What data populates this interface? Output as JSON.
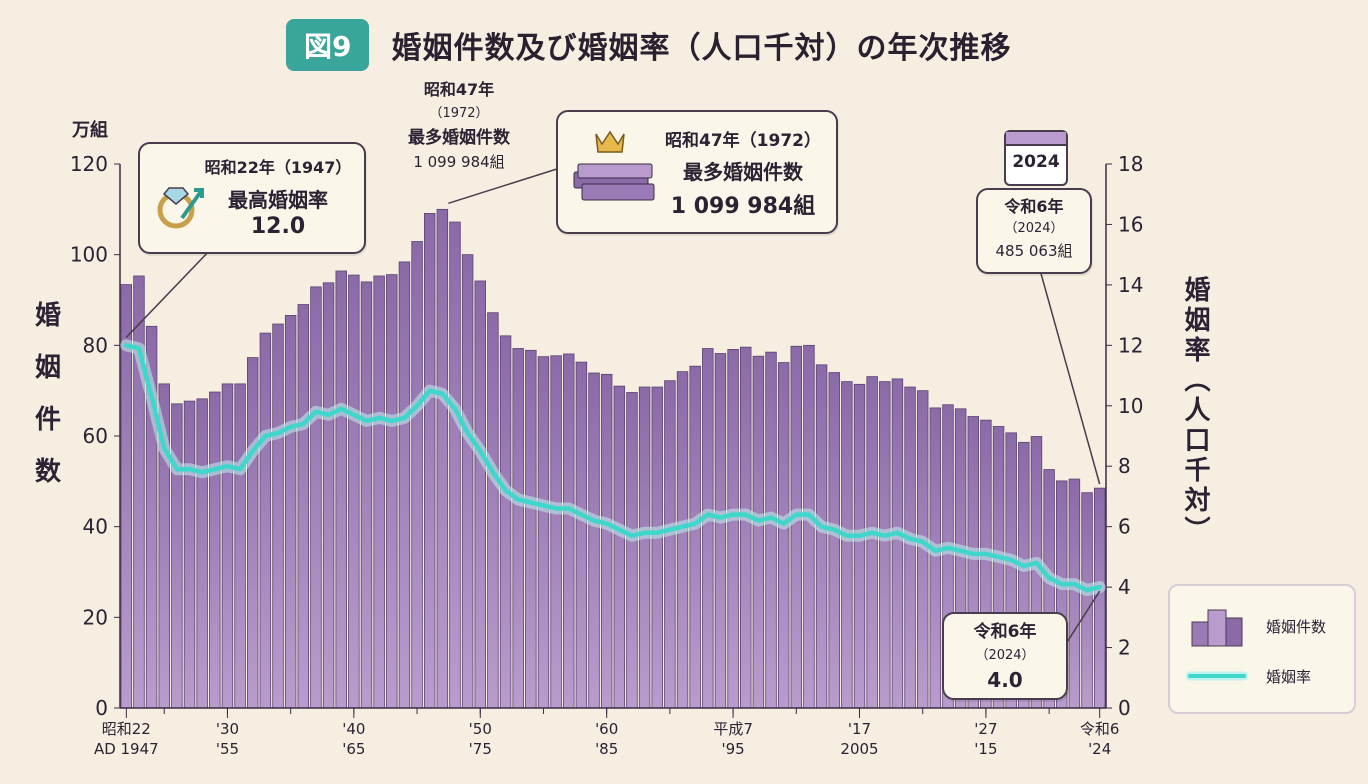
{
  "header": {
    "badge": "図9",
    "title": "婚姻件数及び婚姻率（人口千対）の年次推移"
  },
  "axes": {
    "left_unit": "万組",
    "left_title": [
      "婚",
      "姻",
      "件",
      "数"
    ],
    "right_title": "婚姻率（人口千対）",
    "left_ticks": [
      "0",
      "20",
      "40",
      "60",
      "80",
      "100",
      "120"
    ],
    "right_ticks": [
      "0",
      "2",
      "4",
      "6",
      "8",
      "10",
      "12",
      "14",
      "16",
      "18"
    ],
    "x_ticks": [
      {
        "year": 1947,
        "l1": "昭和22",
        "l2": "AD 1947"
      },
      {
        "year": 1955,
        "l1": "'30",
        "l2": "'55"
      },
      {
        "year": 1965,
        "l1": "'40",
        "l2": "'65"
      },
      {
        "year": 1975,
        "l1": "'50",
        "l2": "'75"
      },
      {
        "year": 1985,
        "l1": "'60",
        "l2": "'85"
      },
      {
        "year": 1995,
        "l1": "平成7",
        "l2": "'95"
      },
      {
        "year": 2005,
        "l1": "'17",
        "l2": "2005"
      },
      {
        "year": 2015,
        "l1": "'27",
        "l2": "'15"
      },
      {
        "year": 2024,
        "l1": "令和6",
        "l2": "'24"
      }
    ]
  },
  "annotations": {
    "peak_rate": {
      "line1": "昭和22年（1947）",
      "line2": "最高婚姻率",
      "value": "12.0"
    },
    "peak_count_label": {
      "line1": "昭和47年",
      "line2": "（1972）",
      "line3": "最多婚姻件数",
      "value": "1 099 984組"
    },
    "peak_count_box": {
      "line1": "昭和47年（1972）",
      "line2": "最多婚姻件数",
      "value": "1 099 984組"
    },
    "latest_count": {
      "calendar": "2024",
      "line1": "令和6年",
      "line2": "（2024）",
      "value": "485 063組"
    },
    "latest_rate": {
      "line1": "令和6年",
      "line2": "（2024）",
      "value": "4.0"
    }
  },
  "legend": {
    "bars": "婚姻件数",
    "line": "婚姻率"
  },
  "colors": {
    "bar": "#8b6aa8",
    "bar_light": "#b99ccd",
    "line": "#3fd7cc",
    "title_badge": "#3aa59a"
  },
  "chart_data": {
    "type": "bar",
    "x": [
      1947,
      1948,
      1949,
      1950,
      1951,
      1952,
      1953,
      1954,
      1955,
      1956,
      1957,
      1958,
      1959,
      1960,
      1961,
      1962,
      1963,
      1964,
      1965,
      1966,
      1967,
      1968,
      1969,
      1970,
      1971,
      1972,
      1973,
      1974,
      1975,
      1976,
      1977,
      1978,
      1979,
      1980,
      1981,
      1982,
      1983,
      1984,
      1985,
      1986,
      1987,
      1988,
      1989,
      1990,
      1991,
      1992,
      1993,
      1994,
      1995,
      1996,
      1997,
      1998,
      1999,
      2000,
      2001,
      2002,
      2003,
      2004,
      2005,
      2006,
      2007,
      2008,
      2009,
      2010,
      2011,
      2012,
      2013,
      2014,
      2015,
      2016,
      2017,
      2018,
      2019,
      2020,
      2021,
      2022,
      2023,
      2024
    ],
    "series": [
      {
        "name": "婚姻件数",
        "unit": "万組",
        "axis": "left",
        "values": [
          93.4,
          95.3,
          84.2,
          71.5,
          67.1,
          67.7,
          68.2,
          69.7,
          71.5,
          71.5,
          77.3,
          82.7,
          84.7,
          86.6,
          89.0,
          92.9,
          93.8,
          96.4,
          95.5,
          94.0,
          95.3,
          95.6,
          98.4,
          102.9,
          109.1,
          110.0,
          107.2,
          100.0,
          94.2,
          87.2,
          82.1,
          79.3,
          78.9,
          77.5,
          77.7,
          78.1,
          76.3,
          73.9,
          73.6,
          71.0,
          69.6,
          70.8,
          70.8,
          72.2,
          74.2,
          75.4,
          79.3,
          78.2,
          79.1,
          79.6,
          77.6,
          78.5,
          76.2,
          79.8,
          80.0,
          75.7,
          74.0,
          72.0,
          71.4,
          73.1,
          72.0,
          72.6,
          70.8,
          70.0,
          66.2,
          66.9,
          66.0,
          64.3,
          63.5,
          62.1,
          60.7,
          58.6,
          59.9,
          52.6,
          50.1,
          50.5,
          47.5,
          48.5
        ]
      },
      {
        "name": "婚姻率",
        "unit": "人口千対",
        "axis": "right",
        "values": [
          12.0,
          11.9,
          10.3,
          8.6,
          7.9,
          7.9,
          7.8,
          7.9,
          8.0,
          7.9,
          8.5,
          9.0,
          9.1,
          9.3,
          9.4,
          9.8,
          9.7,
          9.9,
          9.7,
          9.5,
          9.6,
          9.5,
          9.6,
          10.0,
          10.5,
          10.4,
          9.9,
          9.1,
          8.5,
          7.8,
          7.2,
          6.9,
          6.8,
          6.7,
          6.6,
          6.6,
          6.4,
          6.2,
          6.1,
          5.9,
          5.7,
          5.8,
          5.8,
          5.9,
          6.0,
          6.1,
          6.4,
          6.3,
          6.4,
          6.4,
          6.2,
          6.3,
          6.1,
          6.4,
          6.4,
          6.0,
          5.9,
          5.7,
          5.7,
          5.8,
          5.7,
          5.8,
          5.6,
          5.5,
          5.2,
          5.3,
          5.2,
          5.1,
          5.1,
          5.0,
          4.9,
          4.7,
          4.8,
          4.3,
          4.1,
          4.1,
          3.9,
          4.0
        ]
      }
    ],
    "ylim_left": [
      0,
      120
    ],
    "ylim_right": [
      0,
      18
    ]
  }
}
